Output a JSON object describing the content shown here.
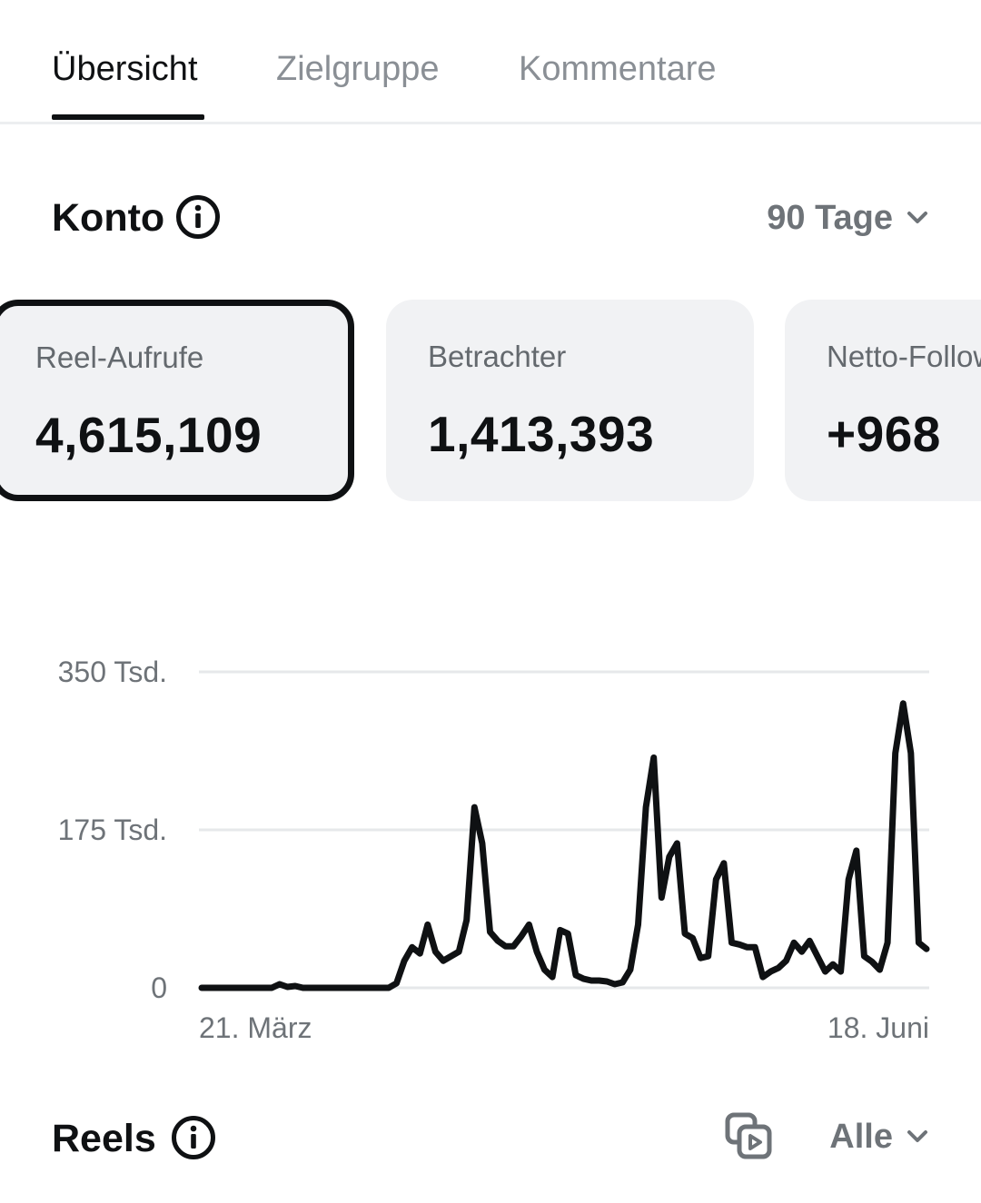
{
  "tabs": [
    {
      "label": "Übersicht",
      "active": true
    },
    {
      "label": "Zielgruppe",
      "active": false
    },
    {
      "label": "Kommentare",
      "active": false
    }
  ],
  "account": {
    "title": "Konto",
    "info_icon": "info-icon",
    "period_label": "90 Tage"
  },
  "metrics": [
    {
      "label": "Reel-Aufrufe",
      "value": "4,615,109",
      "selected": true
    },
    {
      "label": "Betrachter",
      "value": "1,413,393",
      "selected": false
    },
    {
      "label": "Netto-Follower",
      "value": "+968",
      "selected": false
    }
  ],
  "chart_data": {
    "type": "line",
    "x_start_label": "21. März",
    "x_end_label": "18. Juni",
    "ylim": [
      0,
      350000
    ],
    "yticks": [
      {
        "value": 0,
        "label": "0"
      },
      {
        "value": 175000,
        "label": "175 Tsd."
      },
      {
        "value": 350000,
        "label": "350 Tsd."
      }
    ],
    "grid": true,
    "line_color": "#0f1113",
    "values": [
      0,
      0,
      0,
      0,
      0,
      0,
      0,
      0,
      0,
      0,
      4000,
      1000,
      2000,
      0,
      0,
      0,
      0,
      0,
      0,
      0,
      0,
      0,
      0,
      0,
      0,
      5000,
      30000,
      45000,
      38000,
      70000,
      40000,
      30000,
      35000,
      40000,
      75000,
      200000,
      160000,
      62000,
      52000,
      46000,
      46000,
      57000,
      70000,
      40000,
      20000,
      12000,
      64000,
      60000,
      14000,
      10000,
      8000,
      8000,
      7000,
      4000,
      6000,
      20000,
      70000,
      200000,
      255000,
      100000,
      145000,
      160000,
      60000,
      55000,
      33000,
      35000,
      120000,
      138000,
      50000,
      48000,
      45000,
      45000,
      12000,
      18000,
      22000,
      30000,
      50000,
      40000,
      52000,
      35000,
      18000,
      26000,
      18000,
      120000,
      152000,
      35000,
      29000,
      20000,
      50000,
      260000,
      315000,
      260000,
      50000,
      43000
    ]
  },
  "reels": {
    "title": "Reels",
    "info_icon": "info-icon",
    "media_icon": "reels-stack-icon",
    "filter_label": "Alle"
  }
}
